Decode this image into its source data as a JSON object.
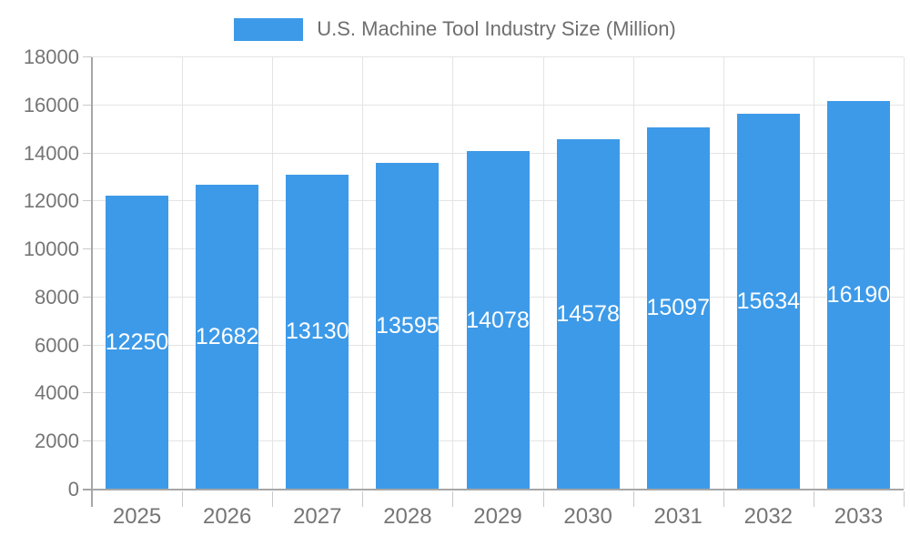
{
  "legend": {
    "label": "U.S. Machine Tool Industry Size (Million)"
  },
  "colors": {
    "bar": "#3D9AE8",
    "grid": "#e4e4e4",
    "tick": "#c9c9c9",
    "axis": "#a6a6a6",
    "axis_label": "#757575",
    "value_label": "#ffffff",
    "legend_text": "#6e6e6e",
    "background": "#ffffff"
  },
  "chart_data": {
    "type": "bar",
    "title": "U.S. Machine Tool Industry Size (Million)",
    "categories": [
      "2025",
      "2026",
      "2027",
      "2028",
      "2029",
      "2030",
      "2031",
      "2032",
      "2033"
    ],
    "values": [
      12250,
      12682,
      13130,
      13595,
      14078,
      14578,
      15097,
      15634,
      16190
    ],
    "value_labels": [
      "12250",
      "12682",
      "13130",
      "13595",
      "14078",
      "14578",
      "15097",
      "15634",
      "16190"
    ],
    "xlabel": "",
    "ylabel": "",
    "ylim": [
      0,
      18000
    ],
    "ytick_step": 2000,
    "yticks": [
      0,
      2000,
      4000,
      6000,
      8000,
      10000,
      12000,
      14000,
      16000,
      18000
    ],
    "ytick_labels": [
      "0",
      "2000",
      "4000",
      "6000",
      "8000",
      "10000",
      "12000",
      "14000",
      "16000",
      "18000"
    ],
    "grid": true,
    "legend_position": "top-center",
    "bar_label_position": "inside-middle"
  }
}
